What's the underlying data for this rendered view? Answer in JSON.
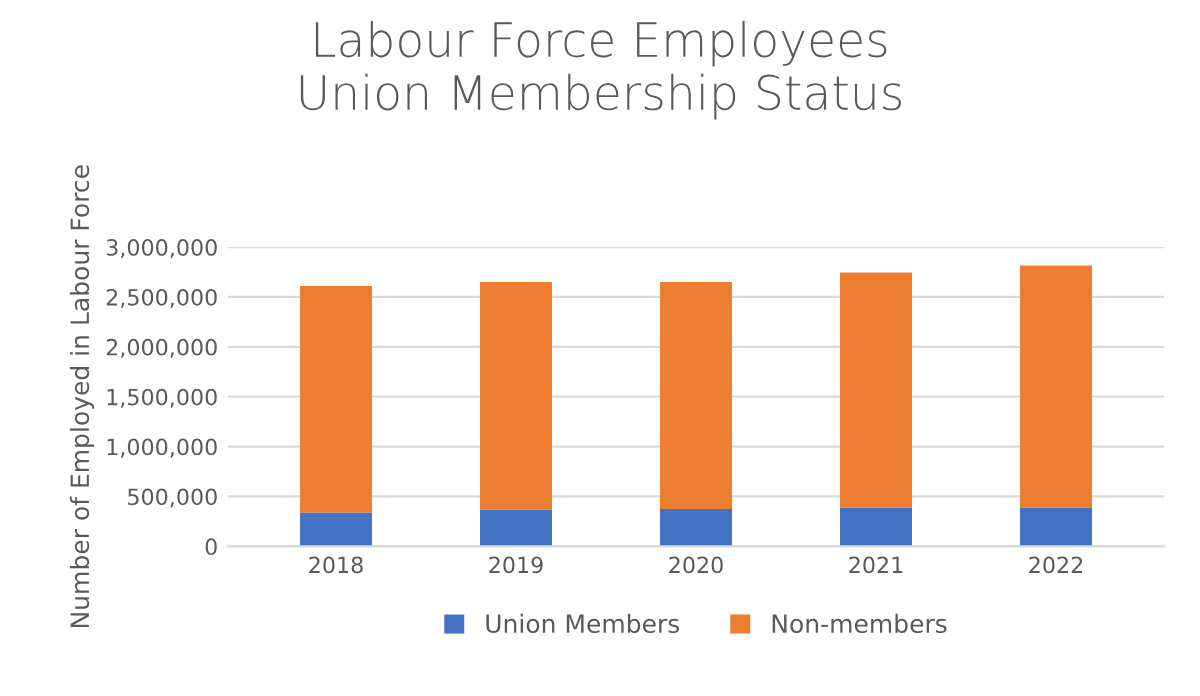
{
  "chart_data": {
    "type": "bar",
    "stacked": true,
    "title": "Labour Force Employees\nUnion Membership Status",
    "ylabel": "Number of Employed in Labour Force",
    "categories": [
      "2018",
      "2019",
      "2020",
      "2021",
      "2022"
    ],
    "series": [
      {
        "name": "Union Members",
        "color": "#4472c4",
        "values": [
          340000,
          370000,
          375000,
          390000,
          390000
        ]
      },
      {
        "name": "Non-members",
        "color": "#ed7d31",
        "values": [
          2270000,
          2280000,
          2275000,
          2355000,
          2425000
        ]
      }
    ],
    "ylim": [
      0,
      3000000
    ],
    "yticks": [
      {
        "value": 0,
        "label": "0"
      },
      {
        "value": 500000,
        "label": "500,000"
      },
      {
        "value": 1000000,
        "label": "1,000,000"
      },
      {
        "value": 1500000,
        "label": "1,500,000"
      },
      {
        "value": 2000000,
        "label": "2,000,000"
      },
      {
        "value": 2500000,
        "label": "2,500,000"
      },
      {
        "value": 3000000,
        "label": "3,000,000"
      }
    ],
    "grid": "y",
    "legend": "bottom"
  }
}
